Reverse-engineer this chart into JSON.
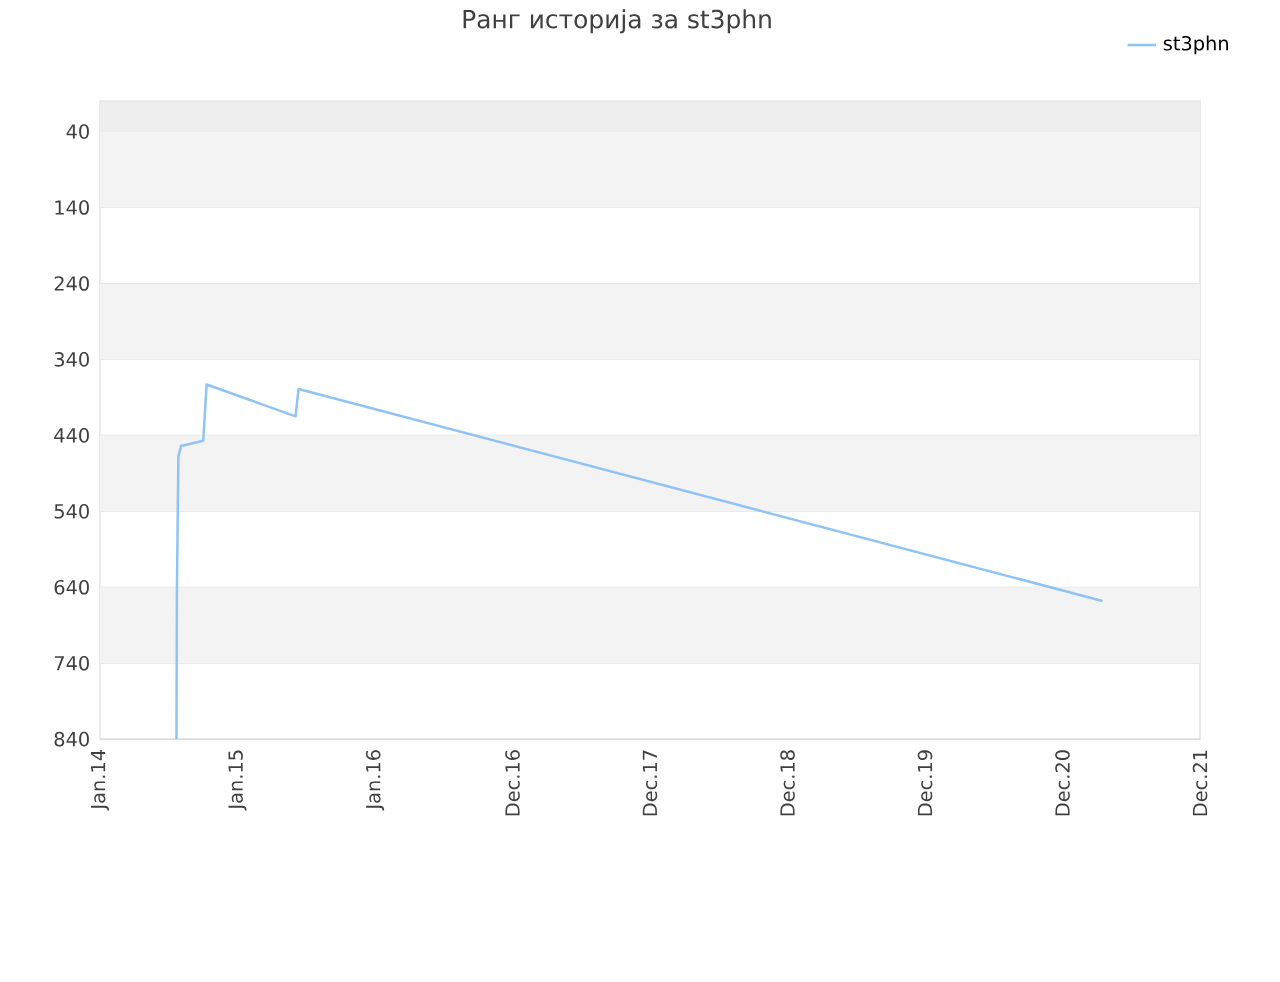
{
  "chart_data": {
    "type": "line",
    "title": "Ранг историја за st3phn",
    "x": [
      "2014-07-23",
      "2014-07-24",
      "2014-07-28",
      "2014-08-04",
      "2014-10-02",
      "2014-10-11",
      "2015-06-04",
      "2015-06-12",
      "2021-04-15"
    ],
    "series": [
      {
        "name": "st3phn",
        "color": "#90c3f5",
        "values": [
          840,
          653,
          468,
          454,
          447,
          373,
          415,
          379,
          658
        ]
      }
    ],
    "xlim": [
      "2014-01-01",
      "2021-12-30"
    ],
    "xticks": [
      {
        "value": "2014-01-01",
        "label": "Jan.14"
      },
      {
        "value": "2015-01-01",
        "label": "Jan.15"
      },
      {
        "value": "2016-01-01",
        "label": "Jan.16"
      },
      {
        "value": "2016-12-31",
        "label": "Dec.16"
      },
      {
        "value": "2017-12-31",
        "label": "Dec.17"
      },
      {
        "value": "2018-12-31",
        "label": "Dec.18"
      },
      {
        "value": "2019-12-31",
        "label": "Dec.19"
      },
      {
        "value": "2020-12-30",
        "label": "Dec.20"
      },
      {
        "value": "2021-12-30",
        "label": "Dec.21"
      }
    ],
    "ylim": [
      840,
      0
    ],
    "yticks": [
      40,
      140,
      240,
      340,
      440,
      540,
      640,
      740,
      840
    ],
    "bands": [
      {
        "axis": "y",
        "from": 0,
        "to": 40,
        "color": "#eeeeee"
      },
      {
        "axis": "y",
        "from": 40,
        "to": 140,
        "color": "#f3f3f3"
      },
      {
        "axis": "y",
        "from": 240,
        "to": 340,
        "color": "#f3f3f3"
      },
      {
        "axis": "y",
        "from": 440,
        "to": 540,
        "color": "#f3f3f3"
      },
      {
        "axis": "y",
        "from": 640,
        "to": 740,
        "color": "#f3f3f3"
      }
    ],
    "grid": "y",
    "legend": "top right",
    "marker": "none",
    "line_style": "solid"
  }
}
